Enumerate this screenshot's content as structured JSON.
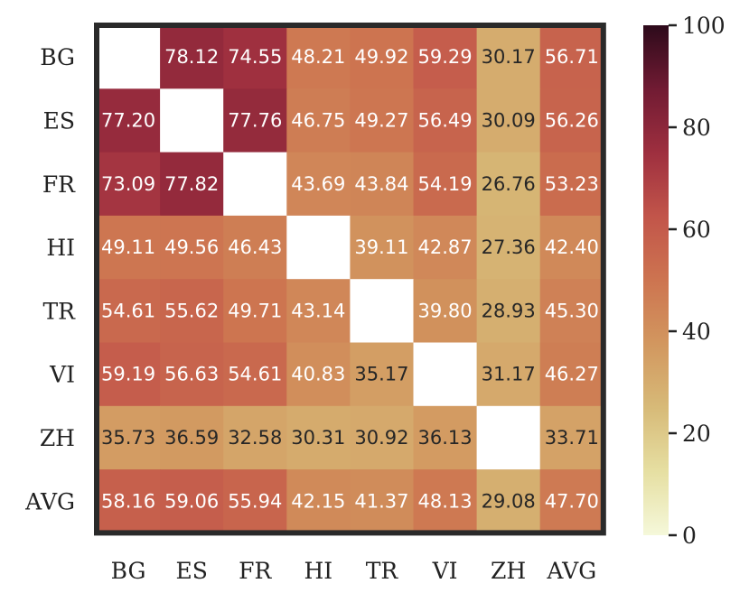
{
  "chart_data": {
    "type": "heatmap",
    "title": "",
    "xlabel": "",
    "ylabel": "",
    "x_categories": [
      "BG",
      "ES",
      "FR",
      "HI",
      "TR",
      "VI",
      "ZH",
      "AVG"
    ],
    "y_categories": [
      "BG",
      "ES",
      "FR",
      "HI",
      "TR",
      "VI",
      "ZH",
      "AVG"
    ],
    "values": [
      [
        null,
        78.12,
        74.55,
        48.21,
        49.92,
        59.29,
        30.17,
        56.71
      ],
      [
        77.2,
        null,
        77.76,
        46.75,
        49.27,
        56.49,
        30.09,
        56.26
      ],
      [
        73.09,
        77.82,
        null,
        43.69,
        43.84,
        54.19,
        26.76,
        53.23
      ],
      [
        49.11,
        49.56,
        46.43,
        null,
        39.11,
        42.87,
        27.36,
        42.4
      ],
      [
        54.61,
        55.62,
        49.71,
        43.14,
        null,
        39.8,
        28.93,
        45.3
      ],
      [
        59.19,
        56.63,
        54.61,
        40.83,
        35.17,
        null,
        31.17,
        46.27
      ],
      [
        35.73,
        36.59,
        32.58,
        30.31,
        30.92,
        36.13,
        null,
        33.71
      ],
      [
        58.16,
        59.06,
        55.94,
        42.15,
        41.37,
        48.13,
        29.08,
        47.7
      ]
    ],
    "value_labels": [
      [
        "",
        "78.12",
        "74.55",
        "48.21",
        "49.92",
        "59.29",
        "30.17",
        "56.71"
      ],
      [
        "77.20",
        "",
        "77.76",
        "46.75",
        "49.27",
        "56.49",
        "30.09",
        "56.26"
      ],
      [
        "73.09",
        "77.82",
        "",
        "43.69",
        "43.84",
        "54.19",
        "26.76",
        "53.23"
      ],
      [
        "49.11",
        "49.56",
        "46.43",
        "",
        "39.11",
        "42.87",
        "27.36",
        "42.40"
      ],
      [
        "54.61",
        "55.62",
        "49.71",
        "43.14",
        "",
        "39.80",
        "28.93",
        "45.30"
      ],
      [
        "59.19",
        "56.63",
        "54.61",
        "40.83",
        "35.17",
        "",
        "31.17",
        "46.27"
      ],
      [
        "35.73",
        "36.59",
        "32.58",
        "30.31",
        "30.92",
        "36.13",
        "",
        "33.71"
      ],
      [
        "58.16",
        "59.06",
        "55.94",
        "42.15",
        "41.37",
        "48.13",
        "29.08",
        "47.70"
      ]
    ],
    "colorbar": {
      "range": [
        0,
        100
      ],
      "ticks": [
        "0",
        "20",
        "40",
        "60",
        "80",
        "100"
      ]
    },
    "colors": {
      "stops": [
        "#f5f8da",
        "#e6dfa2",
        "#d7ba78",
        "#d2975f",
        "#cd7450",
        "#c2554a",
        "#9e2f3f",
        "#711b33",
        "#2d0a1b"
      ],
      "frame": "#2a2a2a",
      "text_light": "#ffffff",
      "text_dark": "#262626"
    },
    "grid": false
  }
}
